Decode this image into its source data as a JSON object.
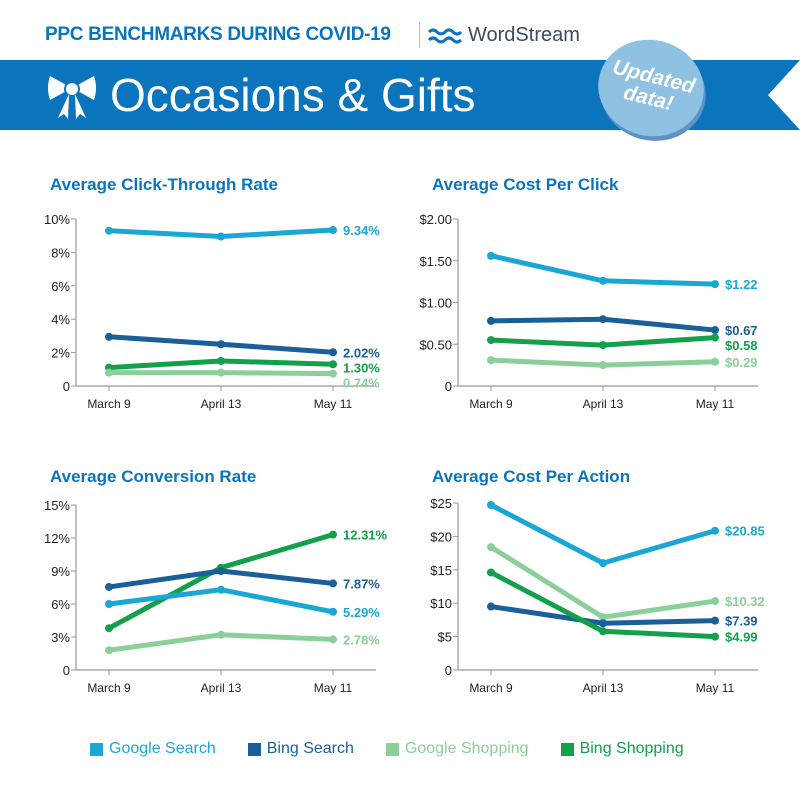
{
  "header": {
    "supertitle": "PPC BENCHMARKS DURING COVID-19",
    "brand": "WordStream",
    "title": "Occasions & Gifts",
    "badge_line1": "Updated",
    "badge_line2": "data!",
    "banner_color": "#0a75bd",
    "icon": "bow-icon"
  },
  "series_colors": {
    "Google Search": "#1aa7d4",
    "Bing Search": "#1a5e9a",
    "Google Shopping": "#8bcf9a",
    "Bing Shopping": "#12a04a"
  },
  "legend": [
    {
      "label": "Google Search",
      "color": "#1aa7d4"
    },
    {
      "label": "Bing Search",
      "color": "#1a5e9a"
    },
    {
      "label": "Google Shopping",
      "color": "#8bcf9a"
    },
    {
      "label": "Bing Shopping",
      "color": "#12a04a"
    }
  ],
  "chart_data": [
    {
      "type": "line",
      "title": "Average Click-Through Rate",
      "categories": [
        "March 9",
        "April 13",
        "May 11"
      ],
      "ylim": [
        0,
        10
      ],
      "yticks": [
        0,
        2,
        4,
        6,
        8,
        10
      ],
      "ytick_labels": [
        "0",
        "2%",
        "4%",
        "6%",
        "8%",
        "10%"
      ],
      "grid": false,
      "series": [
        {
          "name": "Google Search",
          "values": [
            9.3,
            8.95,
            9.34
          ],
          "end_label": "9.34%"
        },
        {
          "name": "Bing Search",
          "values": [
            2.95,
            2.5,
            2.02
          ],
          "end_label": "2.02%"
        },
        {
          "name": "Bing Shopping",
          "values": [
            1.1,
            1.5,
            1.3
          ],
          "end_label": "1.30%"
        },
        {
          "name": "Google Shopping",
          "values": [
            0.8,
            0.8,
            0.74
          ],
          "end_label": "0.74%"
        }
      ]
    },
    {
      "type": "line",
      "title": "Average Cost Per Click",
      "categories": [
        "March 9",
        "April 13",
        "May 11"
      ],
      "ylim": [
        0,
        2
      ],
      "yticks": [
        0,
        0.5,
        1,
        1.5,
        2
      ],
      "ytick_labels": [
        "0",
        "$0.50",
        "$1.00",
        "$1.50",
        "$2.00"
      ],
      "grid": false,
      "series": [
        {
          "name": "Google Search",
          "values": [
            1.56,
            1.26,
            1.22
          ],
          "end_label": "$1.22"
        },
        {
          "name": "Bing Search",
          "values": [
            0.78,
            0.8,
            0.67
          ],
          "end_label": "$0.67"
        },
        {
          "name": "Bing Shopping",
          "values": [
            0.55,
            0.49,
            0.58
          ],
          "end_label": "$0.58"
        },
        {
          "name": "Google Shopping",
          "values": [
            0.31,
            0.25,
            0.29
          ],
          "end_label": "$0.29"
        }
      ]
    },
    {
      "type": "line",
      "title": "Average Conversion Rate",
      "categories": [
        "March 9",
        "April 13",
        "May 11"
      ],
      "ylim": [
        0,
        15
      ],
      "yticks": [
        0,
        3,
        6,
        9,
        12,
        15
      ],
      "ytick_labels": [
        "0",
        "3%",
        "6%",
        "9%",
        "12%",
        "15%"
      ],
      "grid": false,
      "series": [
        {
          "name": "Bing Shopping",
          "values": [
            3.8,
            9.3,
            12.31
          ],
          "end_label": "12.31%"
        },
        {
          "name": "Bing Search",
          "values": [
            7.55,
            9.0,
            7.87
          ],
          "end_label": "7.87%"
        },
        {
          "name": "Google Search",
          "values": [
            6.0,
            7.3,
            5.29
          ],
          "end_label": "5.29%"
        },
        {
          "name": "Google Shopping",
          "values": [
            1.8,
            3.2,
            2.78
          ],
          "end_label": "2.78%"
        }
      ]
    },
    {
      "type": "line",
      "title": "Average Cost Per Action",
      "categories": [
        "March 9",
        "April 13",
        "May 11"
      ],
      "ylim": [
        0,
        25
      ],
      "yticks": [
        0,
        5,
        10,
        15,
        20,
        25
      ],
      "ytick_labels": [
        "0",
        "$5",
        "$10",
        "$15",
        "$20",
        "$25"
      ],
      "grid": false,
      "series": [
        {
          "name": "Google Search",
          "values": [
            24.7,
            16.0,
            20.85
          ],
          "end_label": "$20.85"
        },
        {
          "name": "Google Shopping",
          "values": [
            18.4,
            7.9,
            10.32
          ],
          "end_label": "$10.32"
        },
        {
          "name": "Bing Search",
          "values": [
            9.5,
            7.0,
            7.39
          ],
          "end_label": "$7.39"
        },
        {
          "name": "Bing Shopping",
          "values": [
            14.6,
            5.8,
            4.99
          ],
          "end_label": "$4.99"
        }
      ]
    }
  ]
}
